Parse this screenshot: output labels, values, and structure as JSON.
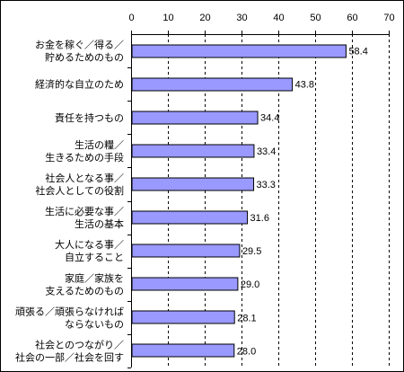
{
  "chart_data": {
    "type": "bar",
    "orientation": "horizontal",
    "categories": [
      [
        "お金を稼ぐ／得る／",
        "貯めるためのもの"
      ],
      [
        "経済的な自立のため"
      ],
      [
        "責任を持つもの"
      ],
      [
        "生活の糧／",
        "生きるための手段"
      ],
      [
        "社会人となる事／",
        "社会人としての役割"
      ],
      [
        "生活に必要な事／",
        "生活の基本"
      ],
      [
        "大人になる事／",
        "自立すること"
      ],
      [
        "家庭／家族を",
        "支えるためのもの"
      ],
      [
        "頑張る／頑張らなければ",
        "ならないもの"
      ],
      [
        "社会とのつながり／",
        "社会の一部／社会を回す"
      ]
    ],
    "values": [
      58.4,
      43.8,
      34.4,
      33.4,
      33.3,
      31.6,
      29.5,
      29.0,
      28.1,
      28.0
    ],
    "value_labels": [
      "58.4",
      "43.8",
      "34.4",
      "33.4",
      "33.3",
      "31.6",
      "29.5",
      "29.0",
      "28.1",
      "28.0"
    ],
    "xlim": [
      0,
      70
    ],
    "xticks": [
      0,
      10,
      20,
      30,
      40,
      50,
      60,
      70
    ],
    "x_axis_position": "top",
    "grid": "vertical dashed",
    "bar_color": "#9999ff",
    "bar_edge_color": "#000000"
  }
}
